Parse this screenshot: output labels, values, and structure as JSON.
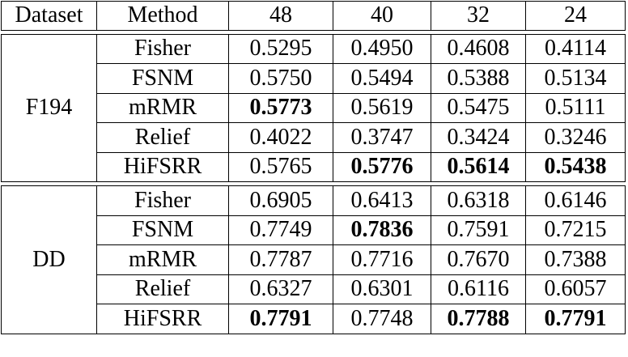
{
  "table": {
    "headers": [
      "Dataset",
      "Method",
      "48",
      "40",
      "32",
      "24"
    ],
    "groups": [
      {
        "dataset": "F194",
        "rows": [
          {
            "method": "Fisher",
            "values": [
              "0.5295",
              "0.4950",
              "0.4608",
              "0.4114"
            ],
            "bold": [
              false,
              false,
              false,
              false
            ]
          },
          {
            "method": "FSNM",
            "values": [
              "0.5750",
              "0.5494",
              "0.5388",
              "0.5134"
            ],
            "bold": [
              false,
              false,
              false,
              false
            ]
          },
          {
            "method": "mRMR",
            "values": [
              "0.5773",
              "0.5619",
              "0.5475",
              "0.5111"
            ],
            "bold": [
              true,
              false,
              false,
              false
            ]
          },
          {
            "method": "Relief",
            "values": [
              "0.4022",
              "0.3747",
              "0.3424",
              "0.3246"
            ],
            "bold": [
              false,
              false,
              false,
              false
            ]
          },
          {
            "method": "HiFSRR",
            "values": [
              "0.5765",
              "0.5776",
              "0.5614",
              "0.5438"
            ],
            "bold": [
              false,
              true,
              true,
              true
            ]
          }
        ]
      },
      {
        "dataset": "DD",
        "rows": [
          {
            "method": "Fisher",
            "values": [
              "0.6905",
              "0.6413",
              "0.6318",
              "0.6146"
            ],
            "bold": [
              false,
              false,
              false,
              false
            ]
          },
          {
            "method": "FSNM",
            "values": [
              "0.7749",
              "0.7836",
              "0.7591",
              "0.7215"
            ],
            "bold": [
              false,
              true,
              false,
              false
            ]
          },
          {
            "method": "mRMR",
            "values": [
              "0.7787",
              "0.7716",
              "0.7670",
              "0.7388"
            ],
            "bold": [
              false,
              false,
              false,
              false
            ]
          },
          {
            "method": "Relief",
            "values": [
              "0.6327",
              "0.6301",
              "0.6116",
              "0.6057"
            ],
            "bold": [
              false,
              false,
              false,
              false
            ]
          },
          {
            "method": "HiFSRR",
            "values": [
              "0.7791",
              "0.7748",
              "0.7788",
              "0.7791"
            ],
            "bold": [
              true,
              false,
              true,
              true
            ]
          }
        ]
      }
    ]
  }
}
